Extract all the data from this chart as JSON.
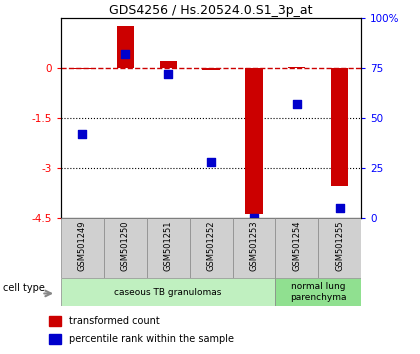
{
  "title": "GDS4256 / Hs.20524.0.S1_3p_at",
  "samples": [
    "GSM501249",
    "GSM501250",
    "GSM501251",
    "GSM501252",
    "GSM501253",
    "GSM501254",
    "GSM501255"
  ],
  "transformed_count": [
    -0.03,
    1.25,
    0.2,
    -0.07,
    -4.4,
    0.03,
    -3.55
  ],
  "percentile_rank": [
    42,
    82,
    72,
    28,
    0,
    57,
    5
  ],
  "ylim_left": [
    -4.5,
    1.5
  ],
  "ylim_right": [
    0,
    100
  ],
  "yticks_left": [
    0,
    -1.5,
    -3,
    -4.5
  ],
  "ytick_labels_left": [
    "0",
    "-1.5",
    "-3",
    "-4.5"
  ],
  "yticks_right": [
    0,
    25,
    50,
    75,
    100
  ],
  "ytick_labels_right": [
    "0",
    "25",
    "50",
    "75",
    "100%"
  ],
  "dotted_lines": [
    -1.5,
    -3.0
  ],
  "bar_color": "#cc0000",
  "dot_color": "#0000cc",
  "hline_color": "#cc0000",
  "cell_type_groups": [
    {
      "label": "caseous TB granulomas",
      "indices": [
        0,
        1,
        2,
        3,
        4
      ],
      "color": "#c0f0c0"
    },
    {
      "label": "normal lung\nparenchyma",
      "indices": [
        5,
        6
      ],
      "color": "#90e090"
    }
  ],
  "legend_bar_label": "transformed count",
  "legend_dot_label": "percentile rank within the sample",
  "cell_type_label": "cell type",
  "bar_width": 0.4,
  "dot_size": 28,
  "background_color": "#ffffff",
  "tick_area_color": "#d4d4d4",
  "sample_box_color": "#d0d0d0"
}
